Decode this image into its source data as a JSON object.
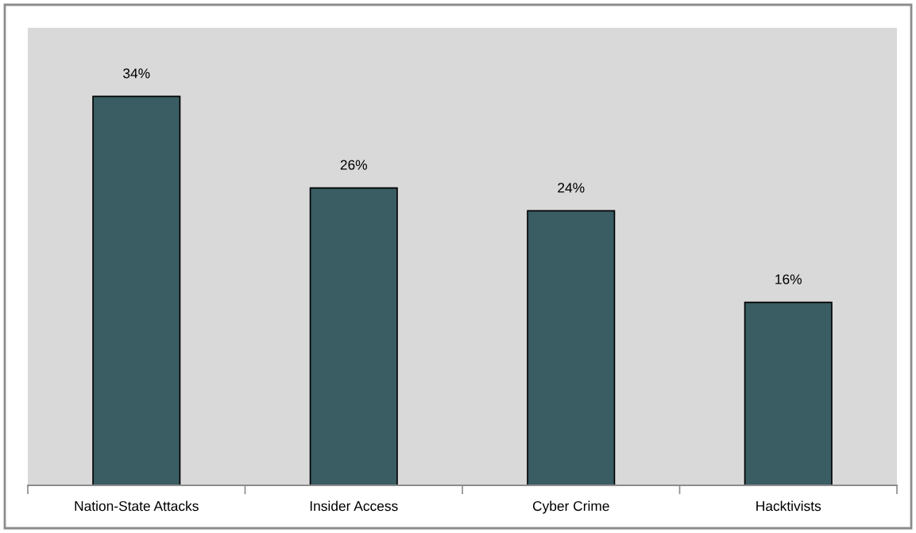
{
  "chart_data": {
    "type": "bar",
    "categories": [
      "Nation-State Attacks",
      "Insider Access",
      "Cyber Crime",
      "Hacktivists"
    ],
    "values": [
      34,
      26,
      24,
      16
    ],
    "value_labels": [
      "34%",
      "26%",
      "24%",
      "16%"
    ],
    "color": "#3a5c63",
    "ylim": [
      0,
      40
    ],
    "tick_labels": "x"
  }
}
